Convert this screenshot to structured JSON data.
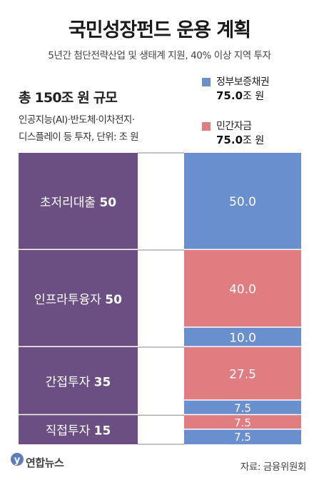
{
  "header": {
    "title": "국민성장펀드 운용 계획",
    "subtitle": "5년간 첨단전략산업 및 생태계 지원, 40% 이상 지역 투자"
  },
  "summary": {
    "total": "총 150조 원 규모",
    "desc_line1": "인공지능(AI)·반도체·이차전지·",
    "desc_line2": "디스플레이 등 투자, 단위: 조 원"
  },
  "legend": [
    {
      "name": "정부보증채권",
      "value": "75.0",
      "unit": "조 원",
      "color": "#6a8fcf"
    },
    {
      "name": "민간자금",
      "value": "75.0",
      "unit": "조 원",
      "color": "#e07d80"
    }
  ],
  "chart_data": {
    "type": "bar",
    "unit": "조 원",
    "total": 150,
    "categories": [
      {
        "label": "초저리대출",
        "value": 50
      },
      {
        "label": "인프라투융자",
        "value": 50
      },
      {
        "label": "간접투자",
        "value": 35
      },
      {
        "label": "직접투자",
        "value": 15
      }
    ],
    "funding_segments": [
      {
        "category": "초저리대출",
        "source": "정부보증채권",
        "value": 50.0,
        "label": "50.0"
      },
      {
        "category": "인프라투융자",
        "source": "민간자금",
        "value": 40.0,
        "label": "40.0"
      },
      {
        "category": "인프라투융자",
        "source": "정부보증채권",
        "value": 10.0,
        "label": "10.0"
      },
      {
        "category": "간접투자",
        "source": "민간자금",
        "value": 27.5,
        "label": "27.5"
      },
      {
        "category": "간접투자",
        "source": "정부보증채권",
        "value": 7.5,
        "label": "7.5"
      },
      {
        "category": "직접투자",
        "source": "민간자금",
        "value": 7.5,
        "label": "7.5"
      },
      {
        "category": "직접투자",
        "source": "정부보증채권",
        "value": 7.5,
        "label": "7.5"
      }
    ],
    "colors": {
      "category_bar": "#6b4f82",
      "정부보증채권": "#6a8fcf",
      "민간자금": "#e07d80",
      "connector_line": "#888888"
    }
  },
  "footer": {
    "logo_text": "연합뉴스",
    "logo_icon": "yonhap-logo-icon",
    "source": "자료: 금융위원회"
  }
}
